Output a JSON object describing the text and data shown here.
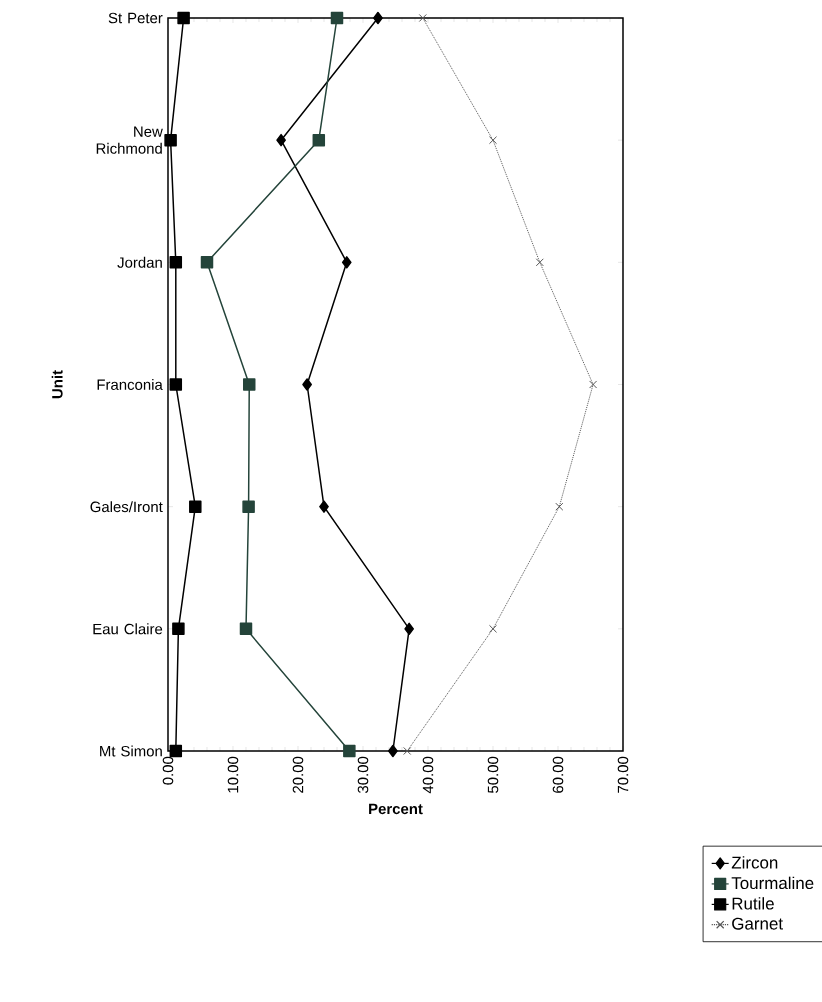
{
  "chart_data": {
    "type": "line",
    "orientation": "horizontal",
    "xlabel": "Percent",
    "ylabel": "Unit",
    "categories": [
      "St Peter",
      "New Richmond",
      "Jordan",
      "Franconia",
      "Gales/Iront",
      "Eau Claire",
      "Mt Simon"
    ],
    "xlim": [
      0,
      70
    ],
    "xticks": [
      {
        "value": 0,
        "label": "0.00"
      },
      {
        "value": 10,
        "label": "10.00"
      },
      {
        "value": 20,
        "label": "20.00"
      },
      {
        "value": 30,
        "label": "30.00"
      },
      {
        "value": 40,
        "label": "40.00"
      },
      {
        "value": 50,
        "label": "50.00"
      },
      {
        "value": 60,
        "label": "60.00"
      },
      {
        "value": 70,
        "label": "70.00"
      }
    ],
    "legend": "bottom right",
    "grid": false,
    "series": [
      {
        "name": "Zircon",
        "color": "#000000",
        "marker": "diamond",
        "line_style": "solid",
        "values": [
          32.3,
          17.4,
          27.5,
          21.4,
          24.0,
          37.1,
          34.6
        ]
      },
      {
        "name": "Tourmaline",
        "color": "#24443a",
        "marker": "square",
        "line_style": "solid",
        "values": [
          26.0,
          23.2,
          6.0,
          12.5,
          12.4,
          12.0,
          27.9
        ]
      },
      {
        "name": "Rutile",
        "color": "#000000",
        "marker": "square",
        "line_style": "solid",
        "values": [
          2.4,
          0.4,
          1.2,
          1.2,
          4.2,
          1.6,
          1.2
        ]
      },
      {
        "name": "Garnet",
        "color": "#555555",
        "marker": "cross",
        "line_style": "dotted",
        "values": [
          39.2,
          50.0,
          57.2,
          65.4,
          60.2,
          50.0,
          36.8
        ]
      }
    ]
  }
}
